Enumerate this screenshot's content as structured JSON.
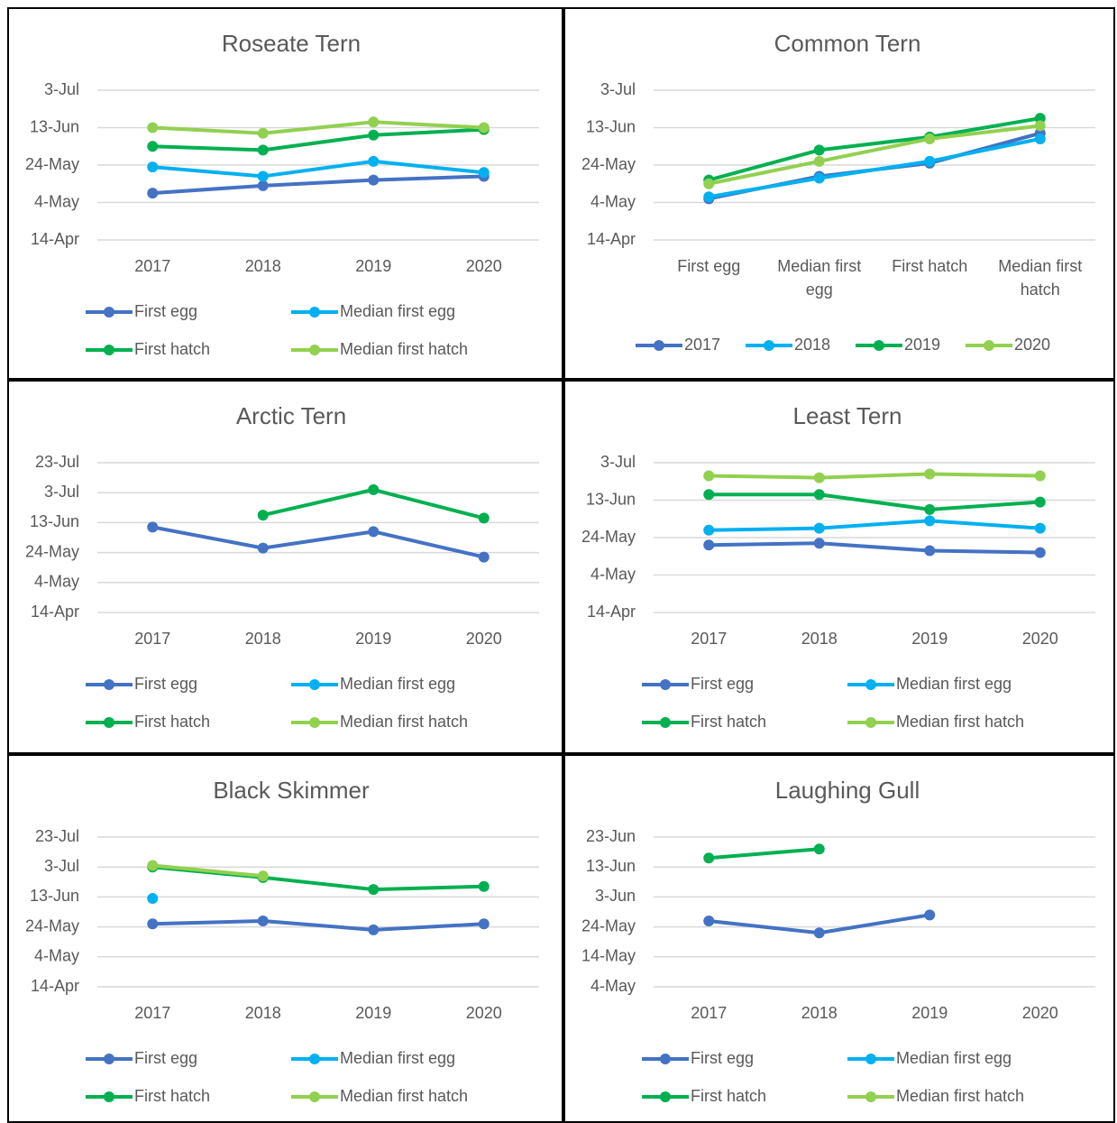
{
  "chart_data": [
    {
      "type": "line",
      "title": "Roseate Tern",
      "categories": [
        "2017",
        "2018",
        "2019",
        "2020"
      ],
      "series": [
        {
          "name": "First egg",
          "color": "#4472c4",
          "values": [
            129,
            133,
            136,
            138
          ]
        },
        {
          "name": "Median first egg",
          "color": "#00b0f0",
          "values": [
            143,
            138,
            146,
            140
          ]
        },
        {
          "name": "First hatch",
          "color": "#00b050",
          "values": [
            154,
            152,
            160,
            163
          ]
        },
        {
          "name": "Median first hatch",
          "color": "#92d050",
          "values": [
            164,
            161,
            167,
            164
          ]
        }
      ],
      "ylim": [
        104,
        184
      ],
      "yticks": [
        {
          "value": 104,
          "label": "14-Apr"
        },
        {
          "value": 124,
          "label": "4-May"
        },
        {
          "value": 144,
          "label": "24-May"
        },
        {
          "value": 164,
          "label": "13-Jun"
        },
        {
          "value": 184,
          "label": "3-Jul"
        }
      ],
      "grid": true
    },
    {
      "type": "line",
      "title": "Common Tern",
      "categories": [
        "First egg",
        "Median first egg",
        "First hatch",
        "Median first hatch"
      ],
      "series": [
        {
          "name": "2017",
          "color": "#4472c4",
          "values": [
            126,
            138,
            145,
            161
          ]
        },
        {
          "name": "2018",
          "color": "#00b0f0",
          "values": [
            127,
            137,
            146,
            158
          ]
        },
        {
          "name": "2019",
          "color": "#00b050",
          "values": [
            136,
            152,
            159,
            169
          ]
        },
        {
          "name": "2020",
          "color": "#92d050",
          "values": [
            134,
            146,
            158,
            165
          ]
        }
      ],
      "ylim": [
        104,
        184
      ],
      "yticks": [
        {
          "value": 104,
          "label": "14-Apr"
        },
        {
          "value": 124,
          "label": "4-May"
        },
        {
          "value": 144,
          "label": "24-May"
        },
        {
          "value": 164,
          "label": "13-Jun"
        },
        {
          "value": 184,
          "label": "3-Jul"
        }
      ],
      "grid": true
    },
    {
      "type": "line",
      "title": "Arctic Tern",
      "categories": [
        "2017",
        "2018",
        "2019",
        "2020"
      ],
      "series": [
        {
          "name": "First egg",
          "color": "#4472c4",
          "values": [
            161,
            147,
            158,
            141
          ]
        },
        {
          "name": "Median first egg",
          "color": "#00b0f0",
          "values": [
            null,
            null,
            null,
            null
          ]
        },
        {
          "name": "First hatch",
          "color": "#00b050",
          "values": [
            null,
            169,
            186,
            167
          ]
        },
        {
          "name": "Median first hatch",
          "color": "#92d050",
          "values": [
            null,
            null,
            null,
            null
          ]
        }
      ],
      "ylim": [
        104,
        204
      ],
      "yticks": [
        {
          "value": 104,
          "label": "14-Apr"
        },
        {
          "value": 124,
          "label": "4-May"
        },
        {
          "value": 144,
          "label": "24-May"
        },
        {
          "value": 164,
          "label": "13-Jun"
        },
        {
          "value": 184,
          "label": "3-Jul"
        },
        {
          "value": 204,
          "label": "23-Jul"
        }
      ],
      "grid": true
    },
    {
      "type": "line",
      "title": "Least Tern",
      "categories": [
        "2017",
        "2018",
        "2019",
        "2020"
      ],
      "series": [
        {
          "name": "First egg",
          "color": "#4472c4",
          "values": [
            140,
            141,
            137,
            136
          ]
        },
        {
          "name": "Median first egg",
          "color": "#00b0f0",
          "values": [
            148,
            149,
            153,
            149
          ]
        },
        {
          "name": "First hatch",
          "color": "#00b050",
          "values": [
            167,
            167,
            159,
            163
          ]
        },
        {
          "name": "Median first hatch",
          "color": "#92d050",
          "values": [
            177,
            176,
            178,
            177
          ]
        }
      ],
      "ylim": [
        104,
        184
      ],
      "yticks": [
        {
          "value": 104,
          "label": "14-Apr"
        },
        {
          "value": 124,
          "label": "4-May"
        },
        {
          "value": 144,
          "label": "24-May"
        },
        {
          "value": 164,
          "label": "13-Jun"
        },
        {
          "value": 184,
          "label": "3-Jul"
        }
      ],
      "grid": true
    },
    {
      "type": "line",
      "title": "Black Skimmer",
      "categories": [
        "2017",
        "2018",
        "2019",
        "2020"
      ],
      "series": [
        {
          "name": "First egg",
          "color": "#4472c4",
          "values": [
            146,
            148,
            142,
            146
          ]
        },
        {
          "name": "Median first egg",
          "color": "#00b0f0",
          "values": [
            163,
            null,
            null,
            null
          ]
        },
        {
          "name": "First hatch",
          "color": "#00b050",
          "values": [
            184,
            177,
            169,
            171
          ]
        },
        {
          "name": "Median first hatch",
          "color": "#92d050",
          "values": [
            185,
            178,
            null,
            null
          ]
        }
      ],
      "ylim": [
        104,
        204
      ],
      "yticks": [
        {
          "value": 104,
          "label": "14-Apr"
        },
        {
          "value": 124,
          "label": "4-May"
        },
        {
          "value": 144,
          "label": "24-May"
        },
        {
          "value": 164,
          "label": "13-Jun"
        },
        {
          "value": 184,
          "label": "3-Jul"
        },
        {
          "value": 204,
          "label": "23-Jul"
        }
      ],
      "grid": true
    },
    {
      "type": "line",
      "title": "Laughing Gull",
      "categories": [
        "2017",
        "2018",
        "2019",
        "2020"
      ],
      "series": [
        {
          "name": "First egg",
          "color": "#4472c4",
          "values": [
            146,
            142,
            148,
            null
          ]
        },
        {
          "name": "Median first egg",
          "color": "#00b0f0",
          "values": [
            null,
            null,
            null,
            null
          ]
        },
        {
          "name": "First hatch",
          "color": "#00b050",
          "values": [
            167,
            170,
            null,
            null
          ]
        },
        {
          "name": "Median first hatch",
          "color": "#92d050",
          "values": [
            null,
            null,
            null,
            null
          ]
        }
      ],
      "ylim": [
        124,
        174
      ],
      "yticks": [
        {
          "value": 124,
          "label": "4-May"
        },
        {
          "value": 134,
          "label": "14-May"
        },
        {
          "value": 144,
          "label": "24-May"
        },
        {
          "value": 154,
          "label": "3-Jun"
        },
        {
          "value": 164,
          "label": "13-Jun"
        },
        {
          "value": 174,
          "label": "23-Jun"
        }
      ],
      "grid": true
    }
  ]
}
